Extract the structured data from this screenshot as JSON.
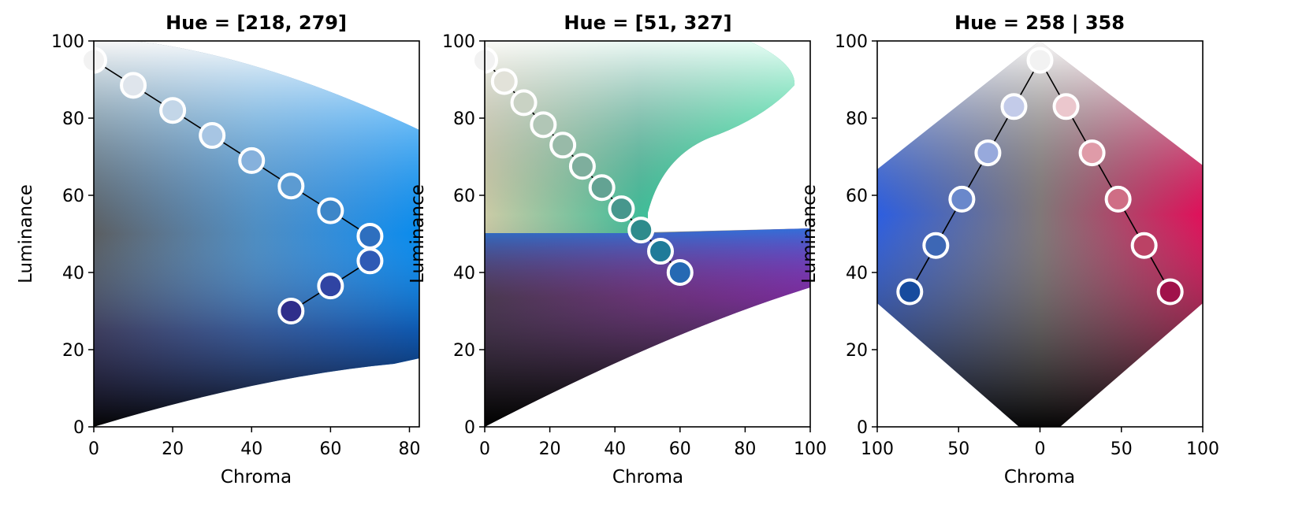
{
  "chart_data": [
    {
      "type": "scatter",
      "title": "Hue = [218, 279]",
      "xlabel": "Chroma",
      "ylabel": "Luminance",
      "xlim": [
        0,
        82.5
      ],
      "ylim": [
        0,
        100
      ],
      "xticks": [
        "0",
        "20",
        "40",
        "60",
        "80"
      ],
      "yticks": [
        "0",
        "20",
        "40",
        "60",
        "80",
        "100"
      ],
      "background": "sequential palette, hue 218 to 279",
      "series": [
        {
          "points": [
            {
              "x": 0,
              "y": 95,
              "color": "#f2f2f2"
            },
            {
              "x": 10,
              "y": 88.5,
              "color": "#dfe5ec"
            },
            {
              "x": 20,
              "y": 82,
              "color": "#c3d6e8"
            },
            {
              "x": 30,
              "y": 75.5,
              "color": "#a7c5e3"
            },
            {
              "x": 40,
              "y": 69,
              "color": "#86b1dc"
            },
            {
              "x": 50,
              "y": 62.4,
              "color": "#5c9bd2"
            },
            {
              "x": 60,
              "y": 56,
              "color": "#3d86c8"
            },
            {
              "x": 70,
              "y": 49.4,
              "color": "#2e6fbf"
            },
            {
              "x": 70,
              "y": 43,
              "color": "#2f5ab5"
            },
            {
              "x": 60,
              "y": 36.5,
              "color": "#3044a3"
            },
            {
              "x": 50,
              "y": 30,
              "color": "#2f2e8b"
            }
          ]
        }
      ]
    },
    {
      "type": "scatter",
      "title": "Hue = [51, 327]",
      "xlabel": "Chroma",
      "ylabel": "Luminance",
      "xlim": [
        0,
        100
      ],
      "ylim": [
        0,
        100
      ],
      "xticks": [
        "0",
        "20",
        "40",
        "60",
        "80",
        "100"
      ],
      "yticks": [
        "0",
        "20",
        "40",
        "60",
        "80",
        "100"
      ],
      "background": "sequential palette, hue 51 to 327",
      "series": [
        {
          "points": [
            {
              "x": 0,
              "y": 95,
              "color": "#f2f2f2"
            },
            {
              "x": 6,
              "y": 89.5,
              "color": "#e2e2d9"
            },
            {
              "x": 12,
              "y": 84,
              "color": "#c9d2c4"
            },
            {
              "x": 18,
              "y": 78.3,
              "color": "#b1c6b6"
            },
            {
              "x": 24,
              "y": 73,
              "color": "#98baa8"
            },
            {
              "x": 30,
              "y": 67.5,
              "color": "#7eae9d"
            },
            {
              "x": 36,
              "y": 62,
              "color": "#63a393"
            },
            {
              "x": 42,
              "y": 56.5,
              "color": "#47978d"
            },
            {
              "x": 48,
              "y": 51,
              "color": "#2e8b8c"
            },
            {
              "x": 54,
              "y": 45.5,
              "color": "#1f7b99"
            },
            {
              "x": 60,
              "y": 40,
              "color": "#2569b3"
            }
          ]
        }
      ]
    },
    {
      "type": "scatter",
      "title": "Hue = 258 | 358",
      "xlabel": "Chroma",
      "ylabel": "Luminance",
      "xlim": [
        -100,
        100
      ],
      "ylim": [
        0,
        100
      ],
      "xticks": [
        "100",
        "50",
        "0",
        "50",
        "100"
      ],
      "yticks": [
        "0",
        "20",
        "40",
        "60",
        "80",
        "100"
      ],
      "background": "diverging palette, hue 258 (left) and 358 (right)",
      "series": [
        {
          "points": [
            {
              "x": -80,
              "y": 35,
              "color": "#174b9e"
            },
            {
              "x": -64,
              "y": 47,
              "color": "#3d67b5"
            },
            {
              "x": -48,
              "y": 59,
              "color": "#6a88cb"
            },
            {
              "x": -32,
              "y": 71,
              "color": "#97a9dc"
            },
            {
              "x": -16,
              "y": 83,
              "color": "#c3cbe9"
            },
            {
              "x": 0,
              "y": 95,
              "color": "#f2f2f2"
            },
            {
              "x": 16,
              "y": 83,
              "color": "#ebc7cd"
            },
            {
              "x": 32,
              "y": 71,
              "color": "#df9ba8"
            },
            {
              "x": 48,
              "y": 59,
              "color": "#cf6e85"
            },
            {
              "x": 64,
              "y": 47,
              "color": "#bb4265"
            },
            {
              "x": 80,
              "y": 35,
              "color": "#a0124a"
            }
          ]
        }
      ]
    }
  ]
}
